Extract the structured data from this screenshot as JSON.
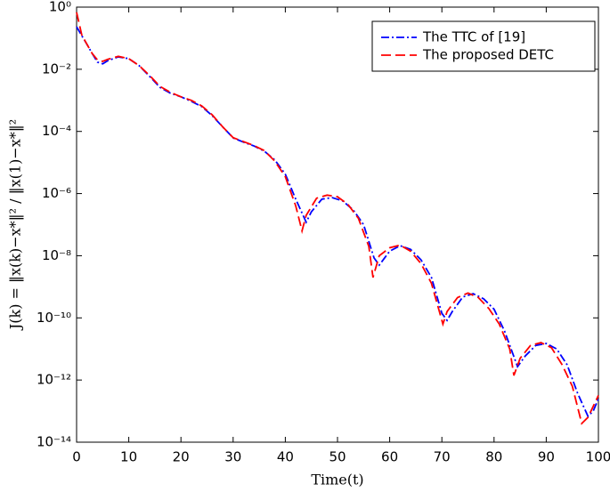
{
  "chart_data": {
    "type": "line",
    "xlabel": "Time(t)",
    "ylabel": "J(k) = ‖x(k)−x*‖² / ‖x(1)−x*‖²",
    "xlim": [
      0,
      100
    ],
    "xticks": [
      0,
      10,
      20,
      30,
      40,
      50,
      60,
      70,
      80,
      90,
      100
    ],
    "ylim": [
      1e-14,
      1
    ],
    "yscale": "log",
    "yticks": [
      {
        "value": 1e-14,
        "label": "10⁻¹⁴"
      },
      {
        "value": 1e-12,
        "label": "10⁻¹²"
      },
      {
        "value": 1e-10,
        "label": "10⁻¹⁰"
      },
      {
        "value": 1e-08,
        "label": "10⁻⁸"
      },
      {
        "value": 1e-06,
        "label": "10⁻⁶"
      },
      {
        "value": 0.0001,
        "label": "10⁻⁴"
      },
      {
        "value": 0.01,
        "label": "10⁻²"
      },
      {
        "value": 1,
        "label": "10⁰"
      }
    ],
    "legend": "upper right",
    "series": [
      {
        "name": "The TTC of [19]",
        "color": "#0000ff",
        "dash": "dashdot",
        "x": [
          0,
          1,
          2,
          3,
          4,
          5,
          6,
          8,
          10,
          12,
          14,
          16,
          18,
          20,
          22,
          24,
          26,
          28,
          30,
          32,
          34,
          36,
          38,
          40,
          42,
          44,
          45,
          47,
          49,
          51,
          53,
          55,
          57,
          58,
          60,
          62,
          64,
          66,
          68,
          70,
          71,
          72,
          74,
          76,
          78,
          80,
          82,
          84.5,
          86,
          88,
          90,
          92,
          94,
          96,
          98,
          99,
          100
        ],
        "values": [
          0.234,
          0.12,
          0.063,
          0.032,
          0.017,
          0.015,
          0.019,
          0.025,
          0.022,
          0.013,
          0.0059,
          0.0026,
          0.0017,
          0.0013,
          0.00093,
          0.00063,
          0.00032,
          0.00014,
          6.2e-05,
          4.5e-05,
          3.4e-05,
          2.3e-05,
          1.2e-05,
          4.2e-06,
          6.6e-07,
          1.2e-07,
          2.6e-07,
          6.6e-07,
          7.4e-07,
          5.8e-07,
          3e-07,
          1e-07,
          8.5e-09,
          5e-09,
          1.4e-08,
          2.1e-08,
          1.6e-08,
          7.4e-09,
          2e-09,
          1.4e-10,
          8.3e-11,
          1.6e-10,
          4.7e-10,
          6e-10,
          4.1e-10,
          1.9e-10,
          3.8e-11,
          2.7e-12,
          6e-12,
          1.3e-11,
          1.5e-11,
          1e-11,
          3.1e-12,
          3.8e-13,
          6.8e-14,
          1e-13,
          2.5e-13
        ]
      },
      {
        "name": "The proposed DETC",
        "color": "#ff0000",
        "dash": "dashed",
        "x": [
          0,
          1,
          2,
          3,
          4,
          5,
          6,
          8,
          10,
          12,
          14,
          16,
          18,
          20,
          22,
          24,
          26,
          28,
          30,
          32,
          34,
          36,
          38,
          40,
          42,
          43.2,
          44,
          46,
          48,
          50,
          52,
          54,
          56,
          56.8,
          58,
          60,
          62,
          64,
          66,
          68,
          70.2,
          71,
          73,
          75,
          77,
          79,
          81,
          83,
          83.8,
          85,
          87,
          89,
          91,
          93,
          95,
          96.8,
          98,
          100
        ],
        "values": [
          0.68,
          0.126,
          0.063,
          0.032,
          0.02,
          0.018,
          0.021,
          0.026,
          0.022,
          0.013,
          0.0063,
          0.0028,
          0.0018,
          0.0013,
          0.001,
          0.00066,
          0.00034,
          0.00014,
          6.3e-05,
          4.7e-05,
          3.5e-05,
          2.4e-05,
          1.1e-05,
          3.5e-06,
          4e-07,
          6.3e-08,
          2e-07,
          7.1e-07,
          8.9e-07,
          7.9e-07,
          4.5e-07,
          1.6e-07,
          2e-08,
          2e-09,
          1e-08,
          1.8e-08,
          2.2e-08,
          1.4e-08,
          5.6e-09,
          1.3e-09,
          6.3e-11,
          1.6e-10,
          4.5e-10,
          6.3e-10,
          4.5e-10,
          2e-10,
          6.3e-11,
          1e-11,
          1.4e-12,
          5e-12,
          1.3e-11,
          1.6e-11,
          1.1e-11,
          3.2e-12,
          6.3e-13,
          4e-14,
          6.3e-14,
          3.2e-13
        ]
      }
    ]
  }
}
